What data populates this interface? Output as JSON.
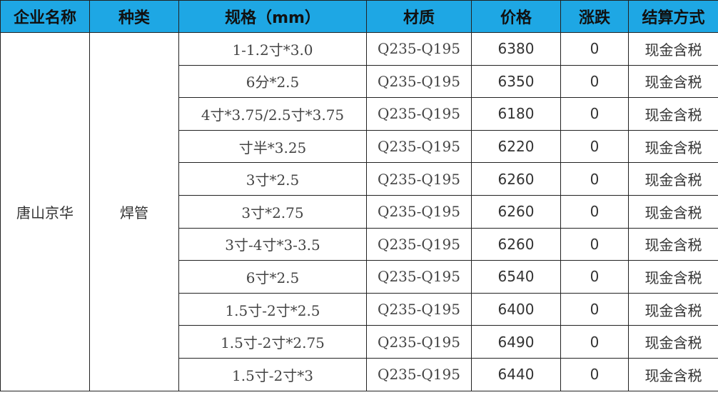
{
  "header": [
    "企业名称",
    "种类",
    "规格（mm）",
    "材质",
    "价格",
    "涨跌",
    "结算方式"
  ],
  "company": "唐山京华",
  "category": "焊管",
  "colors": {
    "header_bg": "#1ea7e4"
  },
  "rows": [
    {
      "spec": "1-1.2寸*3.0",
      "material": "Q235-Q195",
      "price": "6380",
      "change": "0",
      "settlement": "现金含税"
    },
    {
      "spec": "6分*2.5",
      "material": "Q235-Q195",
      "price": "6350",
      "change": "0",
      "settlement": "现金含税"
    },
    {
      "spec": "4寸*3.75/2.5寸*3.75",
      "material": "Q235-Q195",
      "price": "6180",
      "change": "0",
      "settlement": "现金含税"
    },
    {
      "spec": "寸半*3.25",
      "material": "Q235-Q195",
      "price": "6220",
      "change": "0",
      "settlement": "现金含税"
    },
    {
      "spec": "3寸*2.5",
      "material": "Q235-Q195",
      "price": "6260",
      "change": "0",
      "settlement": "现金含税"
    },
    {
      "spec": "3寸*2.75",
      "material": "Q235-Q195",
      "price": "6260",
      "change": "0",
      "settlement": "现金含税"
    },
    {
      "spec": "3寸-4寸*3-3.5",
      "material": "Q235-Q195",
      "price": "6260",
      "change": "0",
      "settlement": "现金含税"
    },
    {
      "spec": "6寸*2.5",
      "material": "Q235-Q195",
      "price": "6540",
      "change": "0",
      "settlement": "现金含税"
    },
    {
      "spec": "1.5寸-2寸*2.5",
      "material": "Q235-Q195",
      "price": "6400",
      "change": "0",
      "settlement": "现金含税"
    },
    {
      "spec": "1.5寸-2寸*2.75",
      "material": "Q235-Q195",
      "price": "6490",
      "change": "0",
      "settlement": "现金含税"
    },
    {
      "spec": "1.5寸-2寸*3",
      "material": "Q235-Q195",
      "price": "6440",
      "change": "0",
      "settlement": "现金含税"
    }
  ]
}
